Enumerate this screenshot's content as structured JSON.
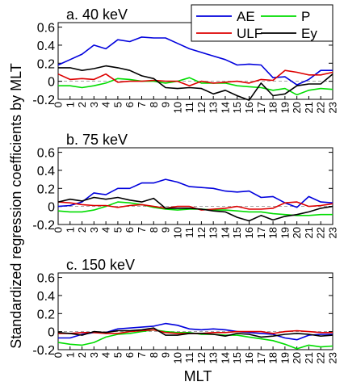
{
  "figure": {
    "ylabel": "Standardized regression coefficients by MLT",
    "xlabel": "MLT"
  },
  "legend": {
    "placement": "top-right",
    "entries": [
      {
        "name": "AE",
        "color": "#0000dd"
      },
      {
        "name": "P",
        "color": "#00dd00"
      },
      {
        "name": "ULF",
        "color": "#dd0000"
      },
      {
        "name": "Ey",
        "color": "#000000"
      }
    ]
  },
  "chart_data": [
    {
      "type": "line",
      "title": "a. 40 keV",
      "x": [
        0,
        1,
        2,
        3,
        4,
        5,
        6,
        7,
        8,
        9,
        10,
        11,
        12,
        13,
        14,
        15,
        16,
        17,
        18,
        19,
        20,
        21,
        22,
        23
      ],
      "ylim": [
        -0.2,
        0.65
      ],
      "yticks": [
        -0.2,
        0,
        0.2,
        0.4,
        0.6
      ],
      "ytick_labels": [
        "-0.2",
        "0",
        "0.2",
        "0.4",
        "0.6"
      ],
      "reference_line": 0,
      "series": [
        {
          "name": "AE",
          "color": "#0000dd",
          "values": [
            0.18,
            0.24,
            0.3,
            0.4,
            0.36,
            0.46,
            0.44,
            0.49,
            0.48,
            0.48,
            0.42,
            0.36,
            0.32,
            0.28,
            0.24,
            0.18,
            0.19,
            0.18,
            0.04,
            0.05,
            -0.04,
            0.02,
            0.12,
            0.12
          ]
        },
        {
          "name": "P",
          "color": "#00dd00",
          "values": [
            -0.05,
            -0.05,
            -0.07,
            -0.05,
            -0.02,
            0.03,
            0.02,
            0.0,
            0.0,
            -0.02,
            0.0,
            0.04,
            -0.02,
            -0.02,
            -0.02,
            -0.05,
            -0.06,
            -0.07,
            -0.1,
            -0.08,
            -0.15,
            -0.1,
            -0.08,
            -0.09
          ]
        },
        {
          "name": "ULF",
          "color": "#dd0000",
          "values": [
            0.08,
            0.02,
            0.03,
            0.02,
            0.08,
            -0.01,
            0.0,
            0.0,
            0.01,
            0.0,
            0.0,
            -0.05,
            0.0,
            -0.02,
            -0.01,
            0.0,
            -0.02,
            0.02,
            0.01,
            0.12,
            0.1,
            0.07,
            0.07,
            0.1
          ]
        },
        {
          "name": "Ey",
          "color": "#000000",
          "values": [
            0.15,
            0.15,
            0.12,
            0.14,
            0.17,
            0.15,
            0.12,
            0.06,
            0.03,
            -0.07,
            -0.08,
            -0.07,
            -0.08,
            -0.14,
            -0.1,
            -0.16,
            -0.21,
            -0.02,
            -0.16,
            -0.14,
            -0.05,
            -0.03,
            -0.03,
            0.08
          ]
        }
      ]
    },
    {
      "type": "line",
      "title": "b. 75 keV",
      "x": [
        0,
        1,
        2,
        3,
        4,
        5,
        6,
        7,
        8,
        9,
        10,
        11,
        12,
        13,
        14,
        15,
        16,
        17,
        18,
        19,
        20,
        21,
        22,
        23
      ],
      "ylim": [
        -0.2,
        0.65
      ],
      "yticks": [
        -0.2,
        0,
        0.2,
        0.4,
        0.6
      ],
      "ytick_labels": [
        "-0.2",
        "0",
        "0.2",
        "0.4",
        "0.6"
      ],
      "reference_line": 0,
      "series": [
        {
          "name": "AE",
          "color": "#0000dd",
          "values": [
            0.0,
            0.01,
            0.05,
            0.15,
            0.13,
            0.2,
            0.2,
            0.26,
            0.26,
            0.3,
            0.27,
            0.22,
            0.21,
            0.2,
            0.17,
            0.16,
            0.17,
            0.1,
            0.11,
            0.04,
            -0.01,
            0.11,
            0.05,
            0.04
          ]
        },
        {
          "name": "P",
          "color": "#00dd00",
          "values": [
            -0.05,
            -0.06,
            -0.06,
            -0.04,
            0.0,
            0.05,
            0.04,
            0.02,
            -0.01,
            -0.03,
            -0.04,
            -0.03,
            -0.03,
            -0.04,
            -0.04,
            -0.05,
            -0.06,
            -0.06,
            -0.08,
            -0.09,
            -0.1,
            -0.1,
            -0.09,
            -0.09
          ]
        },
        {
          "name": "ULF",
          "color": "#dd0000",
          "values": [
            0.05,
            0.04,
            0.02,
            0.01,
            0.01,
            -0.01,
            0.01,
            0.02,
            0.0,
            -0.02,
            0.0,
            0.0,
            -0.04,
            -0.03,
            -0.02,
            0.0,
            -0.03,
            -0.03,
            -0.02,
            0.04,
            0.05,
            0.0,
            0.01,
            0.03
          ]
        },
        {
          "name": "Ey",
          "color": "#000000",
          "values": [
            0.05,
            0.08,
            0.06,
            0.1,
            0.08,
            0.1,
            0.07,
            0.05,
            0.09,
            -0.02,
            -0.02,
            -0.02,
            -0.03,
            -0.05,
            -0.06,
            -0.12,
            -0.16,
            -0.1,
            -0.15,
            -0.11,
            -0.09,
            -0.06,
            -0.02,
            0.0
          ]
        }
      ]
    },
    {
      "type": "line",
      "title": "c. 150 keV",
      "x": [
        0,
        1,
        2,
        3,
        4,
        5,
        6,
        7,
        8,
        9,
        10,
        11,
        12,
        13,
        14,
        15,
        16,
        17,
        18,
        19,
        20,
        21,
        22,
        23
      ],
      "ylim": [
        -0.2,
        0.65
      ],
      "yticks": [
        -0.2,
        0,
        0.2,
        0.4,
        0.6
      ],
      "ytick_labels": [
        "-0.2",
        "0",
        "0.2",
        "0.4",
        "0.6"
      ],
      "reference_line": 0,
      "series": [
        {
          "name": "AE",
          "color": "#0000dd",
          "values": [
            -0.07,
            -0.07,
            -0.03,
            -0.01,
            -0.01,
            0.03,
            0.04,
            0.05,
            0.06,
            0.09,
            0.07,
            0.03,
            0.02,
            0.03,
            0.02,
            0.0,
            -0.01,
            -0.02,
            -0.03,
            -0.07,
            -0.09,
            -0.04,
            -0.03,
            -0.03
          ]
        },
        {
          "name": "P",
          "color": "#00dd00",
          "values": [
            -0.12,
            -0.14,
            -0.15,
            -0.12,
            -0.06,
            -0.03,
            -0.02,
            0.0,
            0.02,
            0.0,
            -0.01,
            -0.01,
            -0.03,
            -0.03,
            -0.04,
            -0.04,
            -0.06,
            -0.08,
            -0.1,
            -0.14,
            -0.19,
            -0.15,
            -0.17,
            -0.16
          ]
        },
        {
          "name": "ULF",
          "color": "#dd0000",
          "values": [
            -0.02,
            -0.02,
            -0.01,
            -0.01,
            -0.02,
            -0.02,
            0.0,
            0.01,
            0.02,
            -0.01,
            -0.02,
            -0.02,
            -0.02,
            -0.01,
            -0.01,
            0.0,
            0.0,
            0.0,
            -0.02,
            0.0,
            0.01,
            0.0,
            -0.01,
            -0.01
          ]
        },
        {
          "name": "Ey",
          "color": "#000000",
          "values": [
            -0.01,
            -0.02,
            -0.04,
            0.0,
            -0.01,
            0.01,
            0.01,
            0.02,
            0.04,
            -0.04,
            -0.04,
            -0.02,
            -0.02,
            -0.03,
            -0.05,
            -0.02,
            -0.03,
            -0.06,
            -0.05,
            -0.03,
            -0.02,
            -0.03,
            -0.05,
            -0.04
          ]
        }
      ]
    }
  ]
}
